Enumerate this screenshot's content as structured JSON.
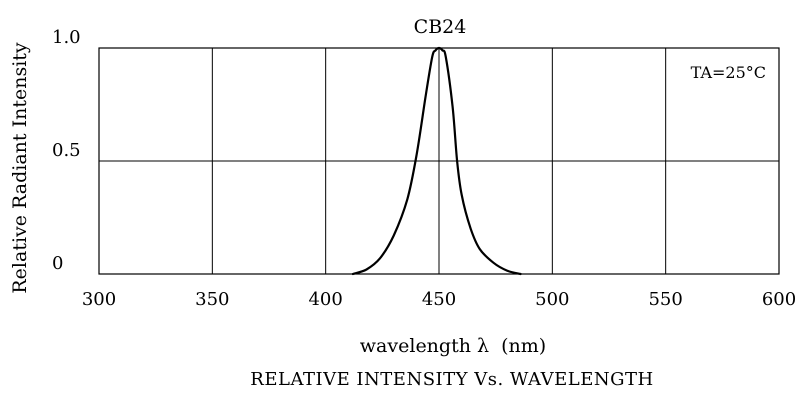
{
  "chart_data": {
    "type": "line",
    "title": "CB24",
    "subtitle": "RELATIVE INTENSITY Vs. WAVELENGTH",
    "xlabel": "wavelength λ  (nm)",
    "ylabel": "Relative Radiant Intensity",
    "xlim": [
      300,
      600
    ],
    "ylim": [
      0,
      1.0
    ],
    "x_ticks": [
      300,
      350,
      400,
      450,
      500,
      550,
      600
    ],
    "x_tick_labels": [
      "300",
      "350",
      "400",
      "450",
      "500",
      "550",
      "600"
    ],
    "y_ticks": [
      0,
      0.5,
      1.0
    ],
    "y_tick_labels": [
      "0",
      "0.5",
      "1.0"
    ],
    "grid": true,
    "annotation": "TA=25°C",
    "annotation_position": "top-right",
    "series": [
      {
        "x": [
          412,
          418,
          424,
          430,
          436,
          440,
          444,
          447,
          448.5,
          450,
          451.5,
          453,
          456,
          458,
          460,
          464,
          468,
          474,
          480,
          486
        ],
        "y": [
          0.0,
          0.02,
          0.07,
          0.17,
          0.33,
          0.52,
          0.78,
          0.96,
          0.99,
          1.0,
          0.99,
          0.96,
          0.74,
          0.5,
          0.35,
          0.2,
          0.11,
          0.05,
          0.015,
          0.0
        ]
      }
    ]
  }
}
